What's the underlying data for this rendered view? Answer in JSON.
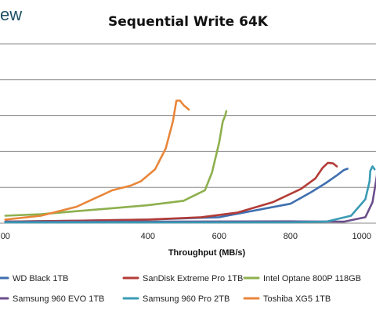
{
  "brand": "ew",
  "chart_data": {
    "type": "line",
    "title": "Sequential Write 64K",
    "xlabel": "Throughput (MB/s)",
    "ylabel": "",
    "xlim": [
      -15,
      1040
    ],
    "ylim": [
      0,
      6
    ],
    "x_ticks": [
      "00",
      "400",
      "600",
      "800",
      "1000"
    ],
    "x_tick_values": [
      0,
      400,
      600,
      800,
      1000
    ],
    "grid": true,
    "legend": "bottom",
    "series": [
      {
        "name": "WD Black 1TB",
        "color": "#3f6fb0",
        "x": [
          0,
          200,
          400,
          600,
          800,
          860,
          900,
          930,
          950,
          960
        ],
        "y": [
          0.05,
          0.08,
          0.12,
          0.2,
          0.65,
          1.05,
          1.35,
          1.6,
          1.78,
          1.82
        ]
      },
      {
        "name": "SanDisk Extreme Pro 1TB",
        "color": "#b33b36",
        "x": [
          0,
          200,
          400,
          550,
          650,
          750,
          830,
          870,
          890,
          905,
          920,
          930
        ],
        "y": [
          0.05,
          0.08,
          0.12,
          0.2,
          0.35,
          0.7,
          1.15,
          1.5,
          1.85,
          2.02,
          2.0,
          1.9
        ]
      },
      {
        "name": "Intel Optane 800P 118GB",
        "color": "#8db04e",
        "x": [
          0,
          100,
          200,
          300,
          400,
          500,
          560,
          580,
          600,
          610,
          617,
          620
        ],
        "y": [
          0.25,
          0.3,
          0.4,
          0.5,
          0.6,
          0.75,
          1.1,
          1.7,
          2.7,
          3.4,
          3.6,
          3.75
        ]
      },
      {
        "name": "Samsung 960 EVO 1TB",
        "color": "#6b4f8c",
        "x": [
          0,
          400,
          800,
          950,
          1010,
          1030,
          1040,
          1045
        ],
        "y": [
          0.05,
          0.05,
          0.06,
          0.05,
          0.2,
          0.7,
          1.4,
          1.8
        ]
      },
      {
        "name": "Samsung 960 Pro 2TB",
        "color": "#3a9bb5",
        "x": [
          0,
          400,
          800,
          900,
          970,
          1010,
          1022,
          1024,
          1030,
          1036
        ],
        "y": [
          0.03,
          0.03,
          0.03,
          0.05,
          0.25,
          0.8,
          1.4,
          1.75,
          1.9,
          1.8
        ]
      },
      {
        "name": "Toshiba XG5 1TB",
        "color": "#e8863a",
        "x": [
          0,
          100,
          200,
          300,
          350,
          380,
          420,
          450,
          470,
          480,
          490,
          500,
          515
        ],
        "y": [
          0.12,
          0.25,
          0.55,
          1.1,
          1.25,
          1.4,
          1.8,
          2.5,
          3.4,
          4.1,
          4.1,
          3.95,
          3.8
        ]
      }
    ]
  }
}
